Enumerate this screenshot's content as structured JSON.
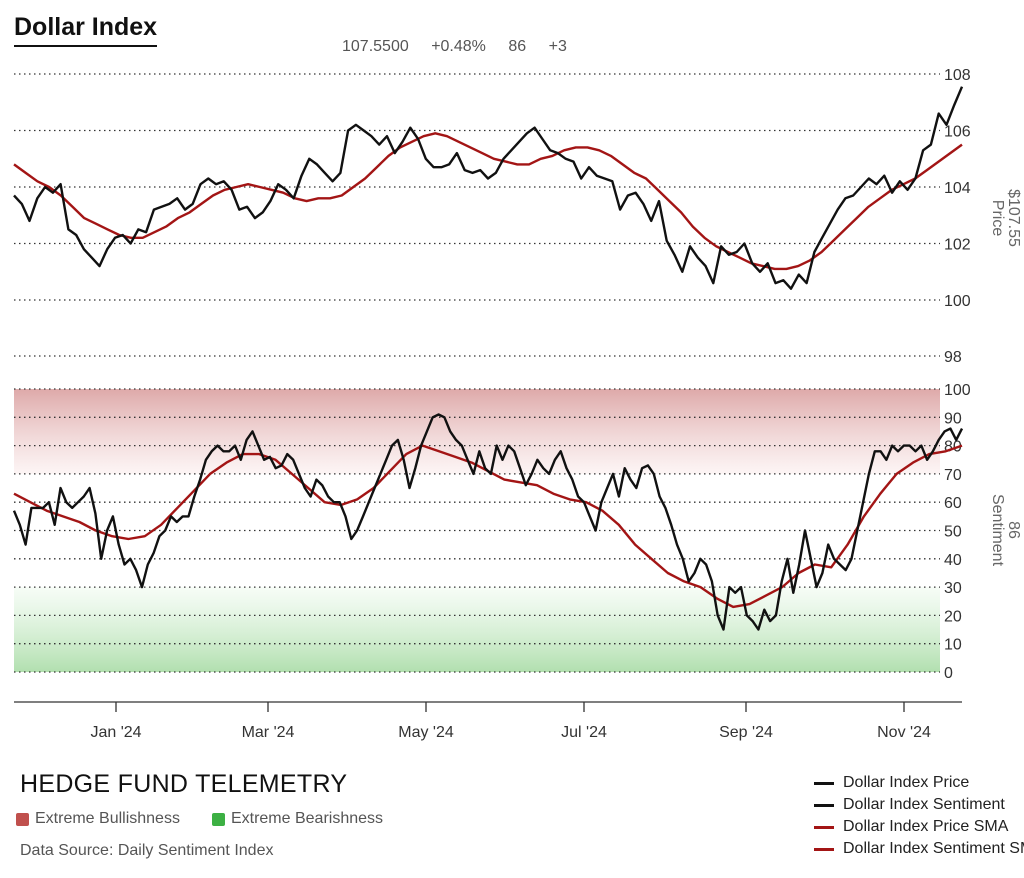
{
  "header": {
    "title": "Dollar Index",
    "stats": [
      "107.5500",
      "+0.48%",
      "86",
      "+3"
    ]
  },
  "colors": {
    "price": "#111111",
    "sentiment": "#111111",
    "sma": "#a31515",
    "bull_zone": "#c0504d",
    "bear_zone": "#3cb043"
  },
  "chart_data": {
    "type": "line",
    "x_tick_labels": [
      "Jan '24",
      "Mar '24",
      "May '24",
      "Jul '24",
      "Sep '24",
      "Nov '24"
    ],
    "panels": [
      {
        "name": "price",
        "axis_title": "Price",
        "axis_value_label": "$107.55",
        "ylim": [
          100,
          108
        ],
        "yticks": [
          100,
          102,
          104,
          106,
          108
        ],
        "series": [
          {
            "name": "Dollar Index Price",
            "color": "#111111",
            "values": [
              103.7,
              103.4,
              102.8,
              103.6,
              104.0,
              103.8,
              104.1,
              102.5,
              102.3,
              101.8,
              101.5,
              101.2,
              101.8,
              102.2,
              102.3,
              102.0,
              102.5,
              102.4,
              103.2,
              103.3,
              103.4,
              103.6,
              103.2,
              103.4,
              104.1,
              104.3,
              104.1,
              104.2,
              103.9,
              103.2,
              103.3,
              102.9,
              103.1,
              103.5,
              104.1,
              103.9,
              103.6,
              104.4,
              105.0,
              104.8,
              104.5,
              104.2,
              104.5,
              106.0,
              106.2,
              106.0,
              105.8,
              105.5,
              105.8,
              105.2,
              105.6,
              106.1,
              105.7,
              105.0,
              104.7,
              104.7,
              104.8,
              105.2,
              104.6,
              104.5,
              104.6,
              104.3,
              104.5,
              105.0,
              105.3,
              105.6,
              105.9,
              106.1,
              105.7,
              105.3,
              105.2,
              105.0,
              104.9,
              104.3,
              104.7,
              104.4,
              104.3,
              104.2,
              103.2,
              103.7,
              103.8,
              103.4,
              102.8,
              103.5,
              102.1,
              101.6,
              101.0,
              101.9,
              101.5,
              101.2,
              100.6,
              101.9,
              101.6,
              101.7,
              102.0,
              101.3,
              101.0,
              101.3,
              100.6,
              100.7,
              100.4,
              100.9,
              100.6,
              101.7,
              102.2,
              102.7,
              103.2,
              103.6,
              103.7,
              104.0,
              104.3,
              104.1,
              104.4,
              103.8,
              104.2,
              103.9,
              104.3,
              105.3,
              105.5,
              106.6,
              106.2,
              106.9,
              107.55
            ]
          },
          {
            "name": "Dollar Index Price SMA",
            "color": "#a31515",
            "values": [
              104.8,
              104.5,
              104.2,
              104.0,
              103.7,
              103.3,
              102.9,
              102.7,
              102.5,
              102.3,
              102.2,
              102.2,
              102.4,
              102.6,
              102.9,
              103.1,
              103.4,
              103.7,
              103.9,
              104.0,
              104.1,
              104.0,
              103.9,
              103.8,
              103.6,
              103.5,
              103.6,
              103.6,
              103.7,
              104.0,
              104.3,
              104.7,
              105.1,
              105.4,
              105.6,
              105.8,
              105.9,
              105.8,
              105.6,
              105.4,
              105.2,
              105.0,
              104.9,
              104.8,
              104.8,
              105.0,
              105.1,
              105.3,
              105.4,
              105.4,
              105.3,
              105.1,
              104.8,
              104.5,
              104.3,
              103.9,
              103.5,
              103.1,
              102.6,
              102.2,
              101.9,
              101.7,
              101.5,
              101.3,
              101.2,
              101.1,
              101.1,
              101.2,
              101.4,
              101.7,
              102.1,
              102.5,
              102.9,
              103.3,
              103.6,
              103.9,
              104.1,
              104.3,
              104.6,
              104.9,
              105.2,
              105.5
            ]
          }
        ]
      },
      {
        "name": "sentiment",
        "axis_title": "Sentiment",
        "axis_value_label": "86",
        "ylim": [
          0,
          100
        ],
        "yticks": [
          0,
          10,
          20,
          30,
          40,
          50,
          60,
          70,
          80,
          90,
          100
        ],
        "extra_top_tick": 98,
        "extreme_bull_min": 70,
        "extreme_bear_max": 30,
        "series": [
          {
            "name": "Dollar Index Sentiment",
            "color": "#111111",
            "values": [
              57,
              52,
              45,
              58,
              58,
              58,
              60,
              52,
              65,
              60,
              58,
              60,
              62,
              65,
              56,
              40,
              50,
              55,
              45,
              38,
              40,
              36,
              30,
              38,
              42,
              48,
              50,
              55,
              53,
              55,
              55,
              62,
              68,
              75,
              78,
              80,
              78,
              78,
              80,
              75,
              82,
              85,
              80,
              75,
              76,
              72,
              73,
              77,
              75,
              70,
              65,
              62,
              68,
              66,
              62,
              60,
              60,
              55,
              47,
              50,
              55,
              60,
              65,
              70,
              75,
              80,
              82,
              75,
              65,
              72,
              80,
              85,
              90,
              91,
              90,
              85,
              82,
              80,
              75,
              70,
              78,
              72,
              70,
              80,
              75,
              80,
              78,
              72,
              66,
              70,
              75,
              72,
              70,
              75,
              78,
              72,
              68,
              62,
              60,
              55,
              50,
              60,
              65,
              70,
              62,
              72,
              68,
              65,
              72,
              73,
              70,
              62,
              58,
              52,
              45,
              40,
              32,
              35,
              40,
              38,
              32,
              20,
              15,
              30,
              28,
              30,
              20,
              18,
              15,
              22,
              18,
              20,
              32,
              40,
              28,
              38,
              50,
              40,
              30,
              35,
              45,
              40,
              38,
              36,
              40,
              50,
              60,
              70,
              78,
              78,
              75,
              80,
              78,
              80,
              80,
              78,
              80,
              75,
              78,
              82,
              85,
              86,
              82,
              86
            ]
          },
          {
            "name": "Dollar Index Sentiment SMA",
            "color": "#a31515",
            "values": [
              63,
              60,
              57,
              55,
              53,
              50,
              48,
              47,
              48,
              52,
              58,
              64,
              70,
              74,
              77,
              77,
              75,
              70,
              65,
              60,
              59,
              61,
              65,
              71,
              77,
              80,
              78,
              76,
              74,
              71,
              68,
              67,
              66,
              63,
              61,
              60,
              57,
              52,
              45,
              40,
              35,
              32,
              30,
              26,
              23,
              24,
              27,
              30,
              35,
              38,
              37,
              45,
              55,
              63,
              70,
              74,
              77,
              78,
              80
            ]
          }
        ]
      }
    ]
  },
  "footer": {
    "brand": "HEDGE FUND TELEMETRY",
    "zones": [
      "Extreme Bullishness",
      "Extreme Bearishness"
    ],
    "source": "Data Source: Daily Sentiment Index"
  },
  "legend": [
    {
      "label": "Dollar Index Price",
      "color": "#111111"
    },
    {
      "label": "Dollar Index Sentiment",
      "color": "#111111"
    },
    {
      "label": "Dollar Index Price SMA",
      "color": "#a31515"
    },
    {
      "label": "Dollar Index Sentiment SMA",
      "color": "#a31515"
    }
  ]
}
